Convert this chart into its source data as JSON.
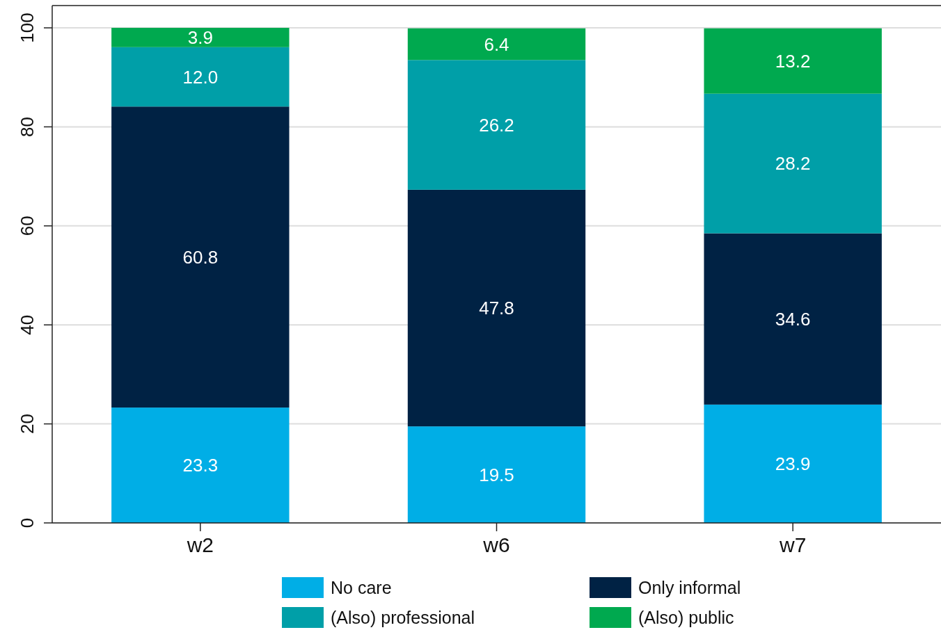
{
  "chart_data": {
    "type": "bar",
    "stacked": true,
    "categories": [
      "w2",
      "w6",
      "w7"
    ],
    "series": [
      {
        "name": "No care",
        "color": "#00aee6",
        "values": [
          23.3,
          19.5,
          23.9
        ],
        "value_labels": [
          "23.3",
          "19.5",
          "23.9"
        ]
      },
      {
        "name": "Only informal",
        "color": "#002244",
        "values": [
          60.8,
          47.8,
          34.6
        ],
        "value_labels": [
          "60.8",
          "47.8",
          "34.6"
        ]
      },
      {
        "name": "(Also) professional",
        "color": "#009fa8",
        "values": [
          12.0,
          26.2,
          28.2
        ],
        "value_labels": [
          "12.0",
          "26.2",
          "28.2"
        ]
      },
      {
        "name": "(Also) public",
        "color": "#00a94f",
        "values": [
          3.9,
          6.4,
          13.2
        ],
        "value_labels": [
          "3.9",
          "6.4",
          "13.2"
        ]
      }
    ],
    "ylim": [
      0,
      104.5
    ],
    "yticks": [
      0,
      20,
      40,
      60,
      80,
      100
    ],
    "grid": "y",
    "legend": "bottom"
  }
}
